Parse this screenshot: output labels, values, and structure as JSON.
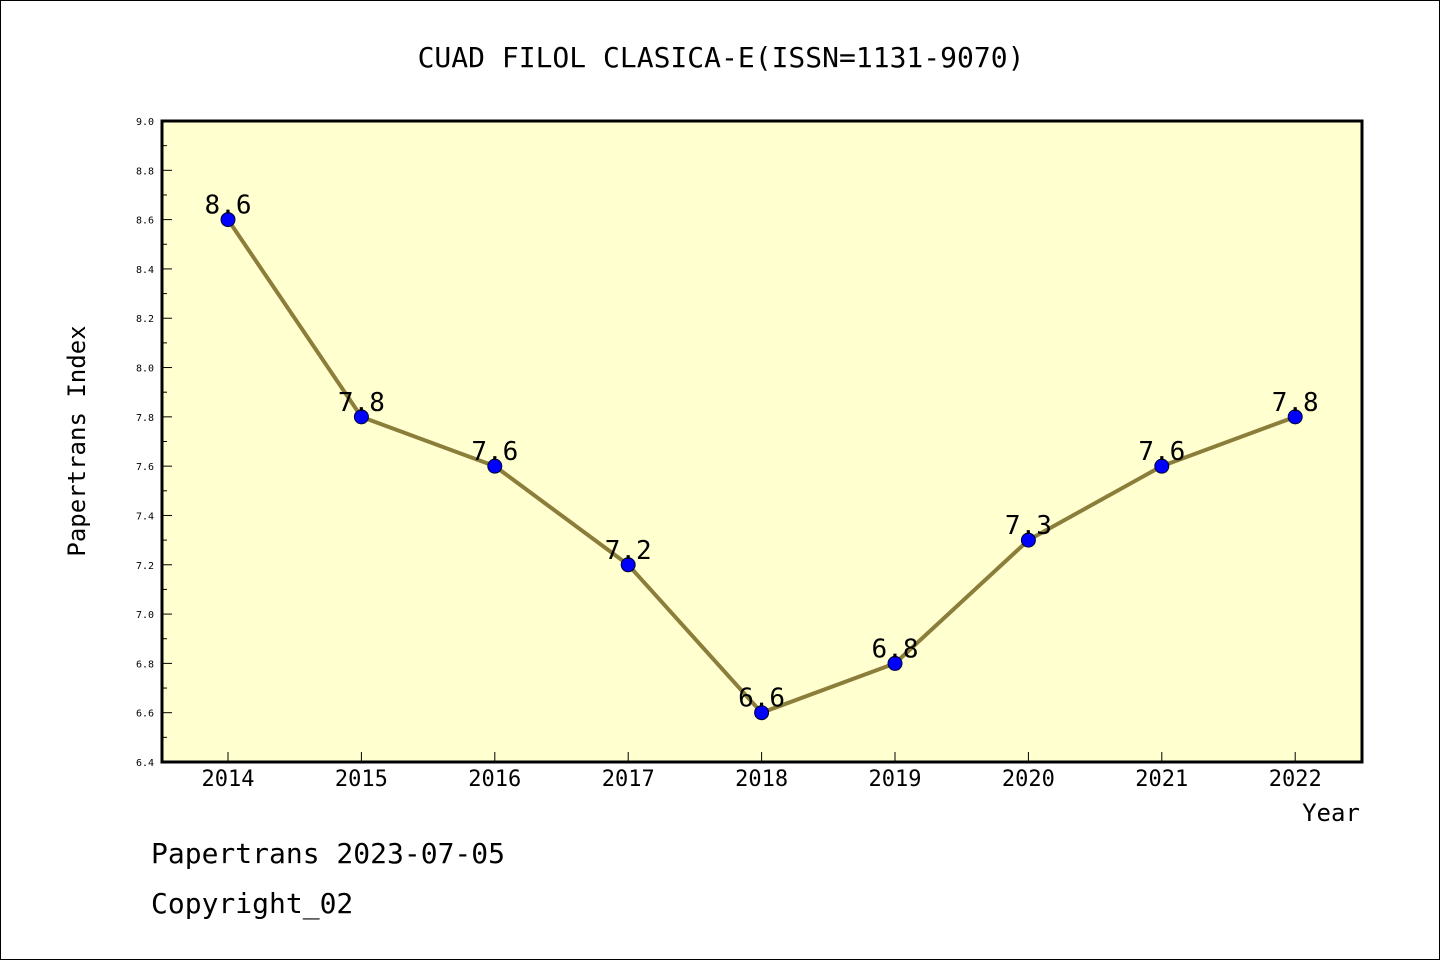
{
  "chart_data": {
    "type": "line",
    "title": "CUAD FILOL CLASICA-E(ISSN=1131-9070)",
    "xlabel": "Year",
    "ylabel": "Papertrans Index",
    "x": [
      "2014",
      "2015",
      "2016",
      "2017",
      "2018",
      "2019",
      "2020",
      "2021",
      "2022"
    ],
    "values": [
      8.6,
      7.8,
      7.6,
      7.2,
      6.6,
      6.8,
      7.3,
      7.6,
      7.8
    ],
    "data_labels": [
      "8.6",
      "7.8",
      "7.6",
      "7.2",
      "6.6",
      "6.8",
      "7.3",
      "7.6",
      "7.8"
    ],
    "ylim": [
      6.4,
      9.0
    ],
    "y_ticks": [
      "6.4",
      "6.6",
      "6.8",
      "7.0",
      "7.2",
      "7.4",
      "7.6",
      "7.8",
      "8.0",
      "8.2",
      "8.4",
      "8.6",
      "8.8",
      "9.0"
    ],
    "grid": false,
    "legend": "none",
    "colors": {
      "plot_background": "#ffffd0",
      "line": "#8b7d3a",
      "marker": "#0000ff"
    }
  },
  "footer": {
    "date_line": "Papertrans 2023-07-05",
    "copyright": "Copyright_02"
  }
}
